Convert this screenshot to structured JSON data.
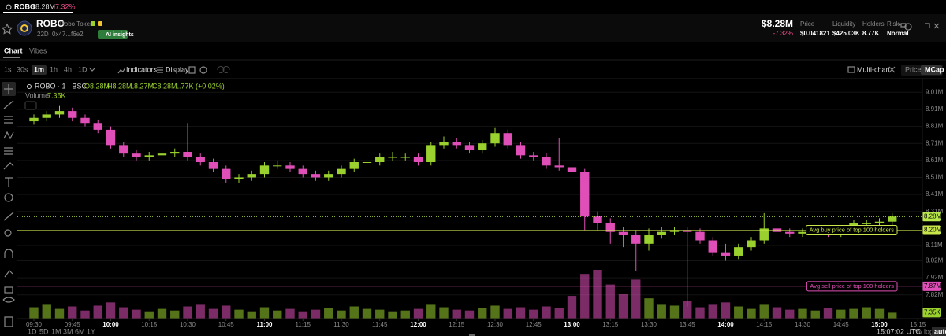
{
  "top_tab": {
    "symbol": "ROBO",
    "mcap": "$8.28M",
    "change": "-7.32%"
  },
  "token": {
    "symbol": "ROBO",
    "name": "Robo Token",
    "age": "22D",
    "address": "0x47...f6e2",
    "ai_button": "AI insights"
  },
  "stats": {
    "mcap": "$8.28M",
    "change": "-7.32%",
    "items": [
      {
        "label": "Price",
        "value": "$0.041821"
      },
      {
        "label": "Liquidity",
        "value": "$425.03K"
      },
      {
        "label": "Holders",
        "value": "8.77K"
      },
      {
        "label": "Risk",
        "value": "Normal"
      }
    ]
  },
  "tabs": [
    "Chart",
    "Vibes"
  ],
  "intervals": [
    "1s",
    "30s",
    "1m",
    "1h",
    "4h",
    "1D"
  ],
  "toolbar": {
    "indicators": "Indicators",
    "display": "Display",
    "multi_chart": "Multi-chart",
    "modes": [
      "Price",
      "MCap"
    ]
  },
  "ranges": [
    "1D",
    "5D",
    "1M",
    "3M",
    "6M",
    "1Y"
  ],
  "clock": "15:07:02 UTC",
  "scale_options": [
    "%",
    "log",
    "auto"
  ],
  "chart_data": {
    "type": "candlestick",
    "title": "ROBO · 1 · BSC",
    "ohlc_legend": [
      "O8.28M",
      "H8.28M",
      "L8.27M",
      "C8.28M",
      "1.77K (+0.02%)"
    ],
    "volume_label": "Volume",
    "volume_value_label": "7.35K",
    "colors": {
      "up": "#9bd12e",
      "down": "#e04fb8"
    },
    "x": [
      "09:30",
      "09:35",
      "09:40",
      "09:45",
      "09:50",
      "09:55",
      "10:00",
      "10:05",
      "10:10",
      "10:15",
      "10:20",
      "10:25",
      "10:30",
      "10:35",
      "10:40",
      "10:45",
      "10:50",
      "10:55",
      "11:00",
      "11:05",
      "11:10",
      "11:15",
      "11:20",
      "11:25",
      "11:30",
      "11:35",
      "11:40",
      "11:45",
      "11:50",
      "11:55",
      "12:00",
      "12:05",
      "12:10",
      "12:15",
      "12:20",
      "12:25",
      "12:30",
      "12:35",
      "12:40",
      "12:45",
      "12:50",
      "12:55",
      "13:00",
      "13:05",
      "13:10",
      "13:15",
      "13:20",
      "13:25",
      "13:30",
      "13:35",
      "13:40",
      "13:45",
      "13:50",
      "13:55",
      "14:00",
      "14:05",
      "14:10",
      "14:15",
      "14:20",
      "14:25",
      "14:30",
      "14:35",
      "14:40",
      "14:45",
      "14:50",
      "14:55",
      "15:00",
      "15:05"
    ],
    "open": [
      8.84,
      8.86,
      8.88,
      8.9,
      8.86,
      8.83,
      8.79,
      8.7,
      8.65,
      8.63,
      8.64,
      8.65,
      8.66,
      8.63,
      8.6,
      8.56,
      8.5,
      8.51,
      8.53,
      8.58,
      8.58,
      8.56,
      8.53,
      8.51,
      8.53,
      8.56,
      8.6,
      8.6,
      8.63,
      8.63,
      8.63,
      8.6,
      8.7,
      8.72,
      8.7,
      8.67,
      8.71,
      8.77,
      8.7,
      8.64,
      8.63,
      8.58,
      8.57,
      8.54,
      8.28,
      8.24,
      8.19,
      8.17,
      8.12,
      8.17,
      8.19,
      8.2,
      8.19,
      8.14,
      8.07,
      8.05,
      8.1,
      8.14,
      8.21,
      8.19,
      8.18,
      8.19,
      8.2,
      8.18,
      8.21,
      8.24,
      8.24,
      8.25
    ],
    "high": [
      8.88,
      8.9,
      8.93,
      8.92,
      8.88,
      8.85,
      8.81,
      8.72,
      8.67,
      8.66,
      8.67,
      8.68,
      8.83,
      8.65,
      8.62,
      8.58,
      8.53,
      8.55,
      8.6,
      8.61,
      8.6,
      8.58,
      8.55,
      8.55,
      8.58,
      8.62,
      8.62,
      8.65,
      8.66,
      8.65,
      8.65,
      8.72,
      8.75,
      8.74,
      8.72,
      8.73,
      8.8,
      8.79,
      8.72,
      8.66,
      8.65,
      8.74,
      8.59,
      8.56,
      8.31,
      8.27,
      8.22,
      8.2,
      8.21,
      8.22,
      8.22,
      8.22,
      8.21,
      8.16,
      8.12,
      8.12,
      8.16,
      8.3,
      8.23,
      8.21,
      8.21,
      8.22,
      8.22,
      8.23,
      8.26,
      8.26,
      8.27,
      8.3
    ],
    "low": [
      8.82,
      8.84,
      8.86,
      8.84,
      8.81,
      8.77,
      8.68,
      8.63,
      8.61,
      8.61,
      8.62,
      8.63,
      8.61,
      8.58,
      8.54,
      8.48,
      8.48,
      8.49,
      8.51,
      8.56,
      8.54,
      8.51,
      8.49,
      8.49,
      8.51,
      8.54,
      8.58,
      8.58,
      8.61,
      8.61,
      8.58,
      8.58,
      8.68,
      8.68,
      8.65,
      8.65,
      8.69,
      8.68,
      8.62,
      8.61,
      8.56,
      8.55,
      8.52,
      8.2,
      8.2,
      8.12,
      8.1,
      7.96,
      8.08,
      8.15,
      8.17,
      7.75,
      8.12,
      8.05,
      8.02,
      8.03,
      8.08,
      8.12,
      8.17,
      8.16,
      8.16,
      8.17,
      8.16,
      8.16,
      8.19,
      8.22,
      8.22,
      8.23
    ],
    "close": [
      8.86,
      8.88,
      8.9,
      8.86,
      8.83,
      8.79,
      8.7,
      8.65,
      8.63,
      8.64,
      8.65,
      8.66,
      8.63,
      8.6,
      8.56,
      8.5,
      8.51,
      8.53,
      8.58,
      8.58,
      8.56,
      8.53,
      8.51,
      8.53,
      8.56,
      8.6,
      8.6,
      8.63,
      8.63,
      8.63,
      8.6,
      8.7,
      8.72,
      8.7,
      8.67,
      8.71,
      8.77,
      8.7,
      8.64,
      8.63,
      8.58,
      8.57,
      8.54,
      8.28,
      8.24,
      8.19,
      8.17,
      8.12,
      8.17,
      8.19,
      8.2,
      8.19,
      8.14,
      8.07,
      8.05,
      8.1,
      8.14,
      8.21,
      8.19,
      8.18,
      8.19,
      8.2,
      8.18,
      8.21,
      8.24,
      8.24,
      8.25,
      8.28
    ],
    "volume": [
      14,
      18,
      12,
      15,
      10,
      16,
      20,
      14,
      11,
      9,
      12,
      10,
      15,
      18,
      12,
      16,
      11,
      9,
      14,
      10,
      12,
      9,
      11,
      13,
      10,
      15,
      12,
      11,
      9,
      10,
      12,
      18,
      14,
      11,
      10,
      13,
      16,
      12,
      14,
      11,
      15,
      13,
      28,
      55,
      60,
      42,
      30,
      48,
      25,
      18,
      16,
      22,
      14,
      18,
      20,
      15,
      12,
      18,
      14,
      11,
      12,
      10,
      13,
      11,
      12,
      14,
      12,
      7.35
    ],
    "ylim": [
      7.68,
      9.09
    ],
    "yticks": [
      {
        "value": 9.01,
        "label": "9.01M"
      },
      {
        "value": 8.91,
        "label": "8.91M"
      },
      {
        "value": 8.81,
        "label": "8.81M"
      },
      {
        "value": 8.71,
        "label": "8.71M"
      },
      {
        "value": 8.61,
        "label": "8.61M"
      },
      {
        "value": 8.51,
        "label": "8.51M"
      },
      {
        "value": 8.41,
        "label": "8.41M"
      },
      {
        "value": 8.31,
        "label": "8.31M"
      },
      {
        "value": 8.11,
        "label": "8.11M"
      },
      {
        "value": 8.02,
        "label": "8.02M"
      },
      {
        "value": 7.92,
        "label": "7.92M"
      },
      {
        "value": 7.82,
        "label": "7.82M"
      }
    ],
    "xticks": [
      "09:30",
      "09:45",
      "10:00",
      "10:15",
      "10:30",
      "10:45",
      "11:00",
      "11:15",
      "11:30",
      "11:45",
      "12:00",
      "12:15",
      "12:30",
      "12:45",
      "13:00",
      "13:15",
      "13:30",
      "13:45",
      "14:00",
      "14:15",
      "14:30",
      "14:45",
      "15:00",
      "15:15"
    ],
    "last_price": {
      "value": 8.28,
      "label": "8.28M",
      "color": "#b8e84a"
    },
    "price_lines": [
      {
        "name": "Avg buy price of top 100 holders",
        "value": 8.2,
        "label": "8.20M",
        "color": "#c8e64a"
      },
      {
        "name": "Avg sell price of top 100 holders",
        "value": 7.87,
        "label": "7.87M",
        "color": "#e04fb8"
      }
    ]
  }
}
